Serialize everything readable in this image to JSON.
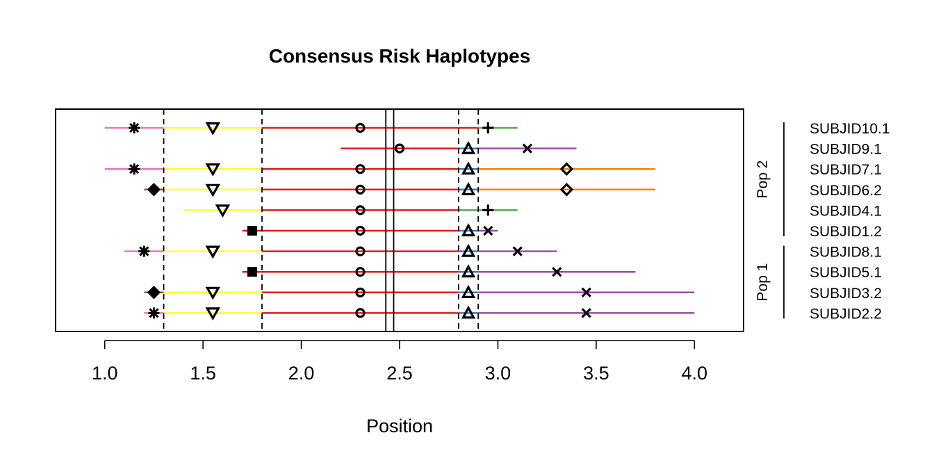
{
  "chart_data": {
    "type": "scatter",
    "title": "Consensus Risk Haplotypes",
    "xlabel": "Position",
    "xlim": [
      0.75,
      4.25
    ],
    "x_ticks": [
      1.0,
      1.5,
      2.0,
      2.5,
      3.0,
      3.5,
      4.0
    ],
    "x_tick_labels": [
      "1.0",
      "1.5",
      "2.0",
      "2.5",
      "3.0",
      "3.5",
      "4.0"
    ],
    "vertical_lines": [
      {
        "x": 1.3,
        "style": "dashed"
      },
      {
        "x": 1.8,
        "style": "dashed"
      },
      {
        "x": 2.43,
        "style": "solid"
      },
      {
        "x": 2.47,
        "style": "solid"
      },
      {
        "x": 2.8,
        "style": "dashed"
      },
      {
        "x": 2.9,
        "style": "dashed"
      }
    ],
    "segment_colors": {
      "pink": "#E377C2",
      "yellow": "#FFFF33",
      "red": "#E41A1C",
      "green": "#4DAF4A",
      "purple": "#984EA3",
      "orange": "#FF7F00",
      "blue": "#377EB8",
      "brown": "#A65628"
    },
    "rows": [
      {
        "label": "SUBJID10.1",
        "segments": [
          {
            "x1": 1.0,
            "x2": 1.3,
            "color": "pink"
          },
          {
            "x1": 1.3,
            "x2": 1.8,
            "color": "yellow"
          },
          {
            "x1": 1.8,
            "x2": 2.9,
            "color": "red"
          },
          {
            "x1": 2.9,
            "x2": 3.1,
            "color": "green"
          }
        ],
        "points": [
          {
            "x": 1.15,
            "shape": "asterisk"
          },
          {
            "x": 1.55,
            "shape": "triangle-down"
          },
          {
            "x": 2.3,
            "shape": "circle"
          },
          {
            "x": 2.95,
            "shape": "plus"
          }
        ]
      },
      {
        "label": "SUBJID9.1",
        "segments": [
          {
            "x1": 2.2,
            "x2": 2.8,
            "color": "red"
          },
          {
            "x1": 2.8,
            "x2": 2.9,
            "color": "blue"
          },
          {
            "x1": 2.9,
            "x2": 3.4,
            "color": "purple"
          }
        ],
        "points": [
          {
            "x": 2.5,
            "shape": "circle"
          },
          {
            "x": 2.85,
            "shape": "triangle-up"
          },
          {
            "x": 3.15,
            "shape": "cross"
          }
        ]
      },
      {
        "label": "SUBJID7.1",
        "segments": [
          {
            "x1": 1.0,
            "x2": 1.3,
            "color": "pink"
          },
          {
            "x1": 1.3,
            "x2": 1.8,
            "color": "yellow"
          },
          {
            "x1": 1.8,
            "x2": 2.8,
            "color": "red"
          },
          {
            "x1": 2.8,
            "x2": 2.9,
            "color": "blue"
          },
          {
            "x1": 2.9,
            "x2": 3.8,
            "color": "orange"
          }
        ],
        "points": [
          {
            "x": 1.15,
            "shape": "asterisk"
          },
          {
            "x": 1.55,
            "shape": "triangle-down"
          },
          {
            "x": 2.3,
            "shape": "circle"
          },
          {
            "x": 2.85,
            "shape": "triangle-up"
          },
          {
            "x": 3.35,
            "shape": "diamond"
          }
        ]
      },
      {
        "label": "SUBJID6.2",
        "segments": [
          {
            "x1": 1.2,
            "x2": 1.3,
            "color": "brown"
          },
          {
            "x1": 1.3,
            "x2": 1.8,
            "color": "yellow"
          },
          {
            "x1": 1.8,
            "x2": 2.8,
            "color": "red"
          },
          {
            "x1": 2.8,
            "x2": 2.9,
            "color": "blue"
          },
          {
            "x1": 2.9,
            "x2": 3.8,
            "color": "orange"
          }
        ],
        "points": [
          {
            "x": 1.25,
            "shape": "diamond-filled"
          },
          {
            "x": 1.55,
            "shape": "triangle-down"
          },
          {
            "x": 2.3,
            "shape": "circle"
          },
          {
            "x": 2.85,
            "shape": "triangle-up"
          },
          {
            "x": 3.35,
            "shape": "diamond"
          }
        ]
      },
      {
        "label": "SUBJID4.1",
        "segments": [
          {
            "x1": 1.4,
            "x2": 1.8,
            "color": "yellow"
          },
          {
            "x1": 1.8,
            "x2": 2.8,
            "color": "red"
          },
          {
            "x1": 2.8,
            "x2": 3.1,
            "color": "green"
          }
        ],
        "points": [
          {
            "x": 1.6,
            "shape": "triangle-down"
          },
          {
            "x": 2.3,
            "shape": "circle"
          },
          {
            "x": 2.95,
            "shape": "plus"
          }
        ]
      },
      {
        "label": "SUBJID1.2",
        "segments": [
          {
            "x1": 1.7,
            "x2": 2.8,
            "color": "red"
          },
          {
            "x1": 2.8,
            "x2": 2.9,
            "color": "blue"
          },
          {
            "x1": 2.9,
            "x2": 3.0,
            "color": "purple"
          }
        ],
        "points": [
          {
            "x": 1.75,
            "shape": "square-filled"
          },
          {
            "x": 2.3,
            "shape": "circle"
          },
          {
            "x": 2.85,
            "shape": "triangle-up"
          },
          {
            "x": 2.95,
            "shape": "cross"
          }
        ]
      },
      {
        "label": "SUBJID8.1",
        "segments": [
          {
            "x1": 1.1,
            "x2": 1.3,
            "color": "pink"
          },
          {
            "x1": 1.3,
            "x2": 1.8,
            "color": "yellow"
          },
          {
            "x1": 1.8,
            "x2": 2.8,
            "color": "red"
          },
          {
            "x1": 2.8,
            "x2": 2.9,
            "color": "blue"
          },
          {
            "x1": 2.9,
            "x2": 3.3,
            "color": "purple"
          }
        ],
        "points": [
          {
            "x": 1.2,
            "shape": "asterisk"
          },
          {
            "x": 1.55,
            "shape": "triangle-down"
          },
          {
            "x": 2.3,
            "shape": "circle"
          },
          {
            "x": 2.85,
            "shape": "triangle-up"
          },
          {
            "x": 3.1,
            "shape": "cross"
          }
        ]
      },
      {
        "label": "SUBJID5.1",
        "segments": [
          {
            "x1": 1.7,
            "x2": 2.8,
            "color": "red"
          },
          {
            "x1": 2.8,
            "x2": 2.9,
            "color": "blue"
          },
          {
            "x1": 2.9,
            "x2": 3.7,
            "color": "purple"
          }
        ],
        "points": [
          {
            "x": 1.75,
            "shape": "square-filled"
          },
          {
            "x": 2.3,
            "shape": "circle"
          },
          {
            "x": 2.85,
            "shape": "triangle-up"
          },
          {
            "x": 3.3,
            "shape": "cross"
          }
        ]
      },
      {
        "label": "SUBJID3.2",
        "segments": [
          {
            "x1": 1.2,
            "x2": 1.3,
            "color": "brown"
          },
          {
            "x1": 1.3,
            "x2": 1.8,
            "color": "yellow"
          },
          {
            "x1": 1.8,
            "x2": 2.8,
            "color": "red"
          },
          {
            "x1": 2.8,
            "x2": 2.9,
            "color": "blue"
          },
          {
            "x1": 2.9,
            "x2": 4.0,
            "color": "purple"
          }
        ],
        "points": [
          {
            "x": 1.25,
            "shape": "diamond-filled"
          },
          {
            "x": 1.55,
            "shape": "triangle-down"
          },
          {
            "x": 2.3,
            "shape": "circle"
          },
          {
            "x": 2.85,
            "shape": "triangle-up"
          },
          {
            "x": 3.45,
            "shape": "cross"
          }
        ]
      },
      {
        "label": "SUBJID2.2",
        "segments": [
          {
            "x1": 1.2,
            "x2": 1.3,
            "color": "pink"
          },
          {
            "x1": 1.3,
            "x2": 1.8,
            "color": "yellow"
          },
          {
            "x1": 1.8,
            "x2": 2.8,
            "color": "red"
          },
          {
            "x1": 2.8,
            "x2": 2.9,
            "color": "blue"
          },
          {
            "x1": 2.9,
            "x2": 4.0,
            "color": "purple"
          }
        ],
        "points": [
          {
            "x": 1.25,
            "shape": "asterisk"
          },
          {
            "x": 1.55,
            "shape": "triangle-down"
          },
          {
            "x": 2.3,
            "shape": "circle"
          },
          {
            "x": 2.85,
            "shape": "triangle-up"
          },
          {
            "x": 3.45,
            "shape": "cross"
          }
        ]
      }
    ],
    "groups": [
      {
        "label": "Pop 2",
        "first_row": 0,
        "last_row": 5
      },
      {
        "label": "Pop 1",
        "first_row": 6,
        "last_row": 9
      }
    ]
  }
}
